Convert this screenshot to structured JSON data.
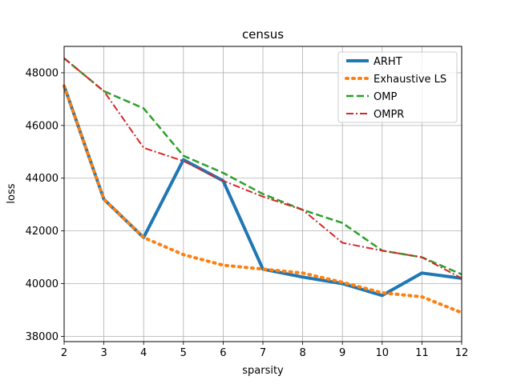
{
  "chart_data": {
    "type": "line",
    "title": "census",
    "xlabel": "sparsity",
    "ylabel": "loss",
    "x": [
      2,
      3,
      4,
      5,
      6,
      7,
      8,
      9,
      10,
      11,
      12
    ],
    "xlim": [
      2,
      12
    ],
    "ylim": [
      37800,
      49000
    ],
    "xticks": [
      "2",
      "3",
      "4",
      "5",
      "6",
      "7",
      "8",
      "9",
      "10",
      "11",
      "12"
    ],
    "yticks": [
      "38000",
      "40000",
      "42000",
      "44000",
      "46000",
      "48000"
    ],
    "grid": true,
    "legend_position": "top-right",
    "series": [
      {
        "name": "ARHT",
        "color": "#1f77b4",
        "style": "solid",
        "values": [
          47500,
          43200,
          41750,
          44700,
          43900,
          40550,
          40250,
          40000,
          39550,
          40400,
          40200
        ]
      },
      {
        "name": "Exhaustive LS",
        "color": "#ff7f0e",
        "style": "dotted",
        "values": [
          47500,
          43200,
          41750,
          41100,
          40700,
          40550,
          40400,
          40050,
          39650,
          39500,
          38900
        ]
      },
      {
        "name": "OMP",
        "color": "#2ca02c",
        "style": "dashed",
        "values": [
          48550,
          47300,
          46650,
          44850,
          44200,
          43400,
          42800,
          42300,
          41250,
          41000,
          40350
        ]
      },
      {
        "name": "OMPR",
        "color": "#d62728",
        "style": "dashdot",
        "values": [
          48550,
          47300,
          45150,
          44650,
          43900,
          43300,
          42800,
          41550,
          41250,
          41000,
          40200
        ]
      }
    ]
  }
}
